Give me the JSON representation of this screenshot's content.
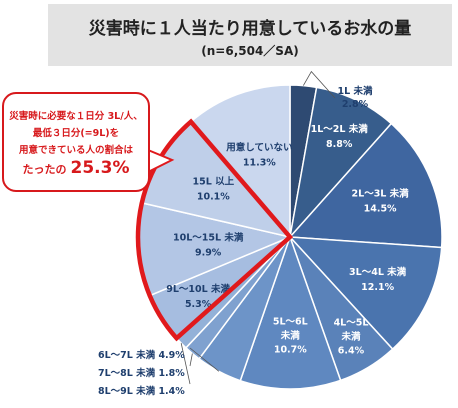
{
  "chart_data": {
    "type": "pie",
    "title": "災害時に１人当たり用意しているお水の量",
    "subtitle": "(n=6,504／SA)",
    "slices": [
      {
        "label": "1L 未満",
        "value_label": "2.8%",
        "value": 2.8,
        "color": "#2e4a72"
      },
      {
        "label": "1L～2L 未満",
        "value_label": "8.8%",
        "value": 8.8,
        "color": "#375d8c"
      },
      {
        "label": "2L～3L 未満",
        "value_label": "14.5%",
        "value": 14.5,
        "color": "#3f66a0"
      },
      {
        "label": "3L～4L 未満",
        "value_label": "12.1%",
        "value": 12.1,
        "color": "#4a74ae"
      },
      {
        "label": "4L～5L 未満",
        "value_label": "6.4%",
        "value": 6.4,
        "color": "#5a82b9"
      },
      {
        "label": "5L～6L 未満",
        "value_label": "10.7%",
        "value": 10.7,
        "color": "#5f88c0"
      },
      {
        "label": "6L～7L 未満",
        "value_label": "4.9%",
        "value": 4.9,
        "color": "#6d94c8"
      },
      {
        "label": "7L～8L 未満",
        "value_label": "1.8%",
        "value": 1.8,
        "color": "#7fa1cf"
      },
      {
        "label": "8L～9L 未満",
        "value_label": "1.4%",
        "value": 1.4,
        "color": "#93b1d8"
      },
      {
        "label": "9L～10L 未満",
        "value_label": "5.3%",
        "value": 5.3,
        "color": "#a6bde0"
      },
      {
        "label": "10L～15L 未満",
        "value_label": "9.9%",
        "value": 9.9,
        "color": "#b3c6e5"
      },
      {
        "label": "15L 以上",
        "value_label": "10.1%",
        "value": 10.1,
        "color": "#bfcfe9"
      },
      {
        "label": "用意していない",
        "value_label": "11.3%",
        "value": 11.3,
        "color": "#cad7ee"
      }
    ]
  },
  "callout": {
    "line1": "災害時に必要な１日分 3L/人、",
    "line2": "最低３日分(=9L)を",
    "line3": "用意できている人の割合は",
    "result_prefix": "たったの",
    "result_value": "25.3%"
  },
  "highlight_color": "#e0191c"
}
